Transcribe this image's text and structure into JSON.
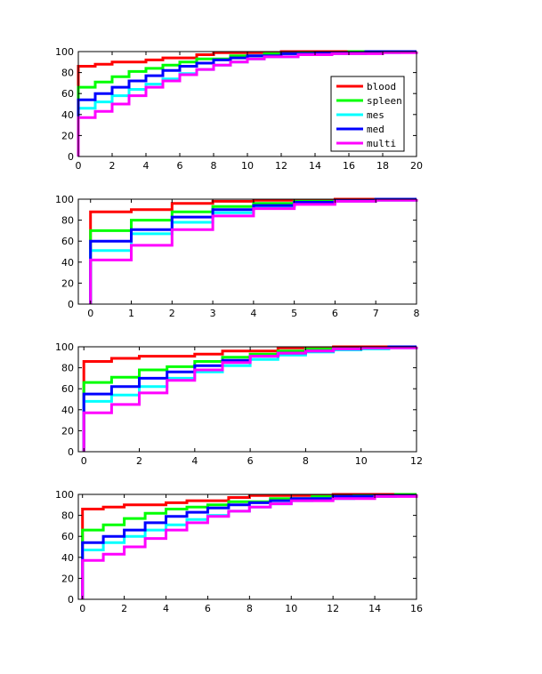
{
  "chart_data": [
    {
      "type": "line",
      "step": true,
      "xlim": [
        0,
        20
      ],
      "ylim": [
        0,
        100
      ],
      "xticks": [
        0,
        2,
        4,
        6,
        8,
        10,
        12,
        14,
        16,
        18,
        20
      ],
      "yticks": [
        0,
        20,
        40,
        60,
        80,
        100
      ],
      "legend": {
        "position": "right",
        "show": true
      },
      "series": [
        {
          "name": "blood",
          "color": "#ff0000",
          "start": 86,
          "points": [
            [
              1,
              88
            ],
            [
              2,
              90
            ],
            [
              4,
              92
            ],
            [
              5,
              94
            ],
            [
              7,
              97
            ],
            [
              8,
              99
            ],
            [
              12,
              100
            ]
          ]
        },
        {
          "name": "spleen",
          "color": "#00ff00",
          "start": 66,
          "points": [
            [
              1,
              71
            ],
            [
              2,
              76
            ],
            [
              3,
              81
            ],
            [
              4,
              84
            ],
            [
              5,
              87
            ],
            [
              6,
              90
            ],
            [
              7,
              93
            ],
            [
              9,
              96
            ],
            [
              11,
              98
            ],
            [
              13,
              99
            ],
            [
              16,
              100
            ]
          ]
        },
        {
          "name": "mes",
          "color": "#00ffff",
          "start": 46,
          "points": [
            [
              1,
              52
            ],
            [
              2,
              58
            ],
            [
              3,
              64
            ],
            [
              4,
              69
            ],
            [
              5,
              74
            ],
            [
              6,
              79
            ],
            [
              7,
              83
            ],
            [
              8,
              87
            ],
            [
              9,
              90
            ],
            [
              10,
              93
            ],
            [
              11,
              95
            ],
            [
              13,
              97
            ],
            [
              15,
              98
            ],
            [
              17,
              99
            ],
            [
              19,
              100
            ]
          ]
        },
        {
          "name": "med",
          "color": "#0000ff",
          "start": 54,
          "points": [
            [
              1,
              60
            ],
            [
              2,
              66
            ],
            [
              3,
              72
            ],
            [
              4,
              77
            ],
            [
              5,
              82
            ],
            [
              6,
              86
            ],
            [
              7,
              89
            ],
            [
              8,
              92
            ],
            [
              9,
              94
            ],
            [
              10,
              96
            ],
            [
              12,
              98
            ],
            [
              14,
              99
            ],
            [
              17,
              100
            ]
          ]
        },
        {
          "name": "multi",
          "color": "#ff00ff",
          "start": 37,
          "points": [
            [
              1,
              43
            ],
            [
              2,
              50
            ],
            [
              3,
              58
            ],
            [
              4,
              66
            ],
            [
              5,
              72
            ],
            [
              6,
              78
            ],
            [
              7,
              83
            ],
            [
              8,
              87
            ],
            [
              9,
              90
            ],
            [
              10,
              93
            ],
            [
              11,
              95
            ],
            [
              13,
              97
            ],
            [
              15,
              98
            ],
            [
              18,
              99
            ],
            [
              20,
              100
            ]
          ]
        }
      ]
    },
    {
      "type": "line",
      "step": true,
      "xlim": [
        -0.3,
        8
      ],
      "ylim": [
        0,
        100
      ],
      "xticks": [
        0,
        1,
        2,
        3,
        4,
        5,
        6,
        7,
        8
      ],
      "yticks": [
        0,
        20,
        40,
        60,
        80,
        100
      ],
      "legend": {
        "show": false
      },
      "series": [
        {
          "name": "blood",
          "color": "#ff0000",
          "start": 88,
          "points": [
            [
              1,
              90
            ],
            [
              2,
              96
            ],
            [
              3,
              98
            ],
            [
              4,
              99
            ],
            [
              6,
              100
            ]
          ]
        },
        {
          "name": "spleen",
          "color": "#00ff00",
          "start": 70,
          "points": [
            [
              1,
              80
            ],
            [
              2,
              88
            ],
            [
              3,
              93
            ],
            [
              4,
              96
            ],
            [
              5,
              98
            ],
            [
              6,
              99
            ],
            [
              7,
              100
            ]
          ]
        },
        {
          "name": "mes",
          "color": "#00ffff",
          "start": 51,
          "points": [
            [
              1,
              67
            ],
            [
              2,
              78
            ],
            [
              3,
              87
            ],
            [
              4,
              93
            ],
            [
              5,
              96
            ],
            [
              6,
              98
            ],
            [
              7,
              99
            ],
            [
              8,
              100
            ]
          ]
        },
        {
          "name": "med",
          "color": "#0000ff",
          "start": 60,
          "points": [
            [
              1,
              71
            ],
            [
              2,
              83
            ],
            [
              3,
              90
            ],
            [
              4,
              94
            ],
            [
              5,
              97
            ],
            [
              6,
              99
            ],
            [
              7,
              100
            ]
          ]
        },
        {
          "name": "multi",
          "color": "#ff00ff",
          "start": 42,
          "points": [
            [
              1,
              56
            ],
            [
              2,
              71
            ],
            [
              3,
              84
            ],
            [
              4,
              91
            ],
            [
              5,
              95
            ],
            [
              6,
              98
            ],
            [
              7,
              99
            ],
            [
              8,
              100
            ]
          ]
        }
      ]
    },
    {
      "type": "line",
      "step": true,
      "xlim": [
        -0.2,
        12
      ],
      "ylim": [
        0,
        100
      ],
      "xticks": [
        0,
        2,
        4,
        6,
        8,
        10,
        12
      ],
      "yticks": [
        0,
        20,
        40,
        60,
        80,
        100
      ],
      "legend": {
        "show": false
      },
      "series": [
        {
          "name": "blood",
          "color": "#ff0000",
          "start": 86,
          "points": [
            [
              1,
              89
            ],
            [
              2,
              91
            ],
            [
              4,
              93
            ],
            [
              5,
              96
            ],
            [
              7,
              99
            ],
            [
              9,
              100
            ]
          ]
        },
        {
          "name": "spleen",
          "color": "#00ff00",
          "start": 66,
          "points": [
            [
              1,
              71
            ],
            [
              2,
              78
            ],
            [
              3,
              81
            ],
            [
              4,
              86
            ],
            [
              5,
              90
            ],
            [
              6,
              93
            ],
            [
              7,
              96
            ],
            [
              8,
              98
            ],
            [
              10,
              99
            ],
            [
              11,
              100
            ]
          ]
        },
        {
          "name": "mes",
          "color": "#00ffff",
          "start": 48,
          "points": [
            [
              1,
              54
            ],
            [
              2,
              62
            ],
            [
              3,
              70
            ],
            [
              4,
              76
            ],
            [
              5,
              82
            ],
            [
              6,
              88
            ],
            [
              7,
              92
            ],
            [
              8,
              95
            ],
            [
              9,
              97
            ],
            [
              10,
              98
            ],
            [
              11,
              99
            ],
            [
              12,
              100
            ]
          ]
        },
        {
          "name": "med",
          "color": "#0000ff",
          "start": 55,
          "points": [
            [
              1,
              62
            ],
            [
              2,
              70
            ],
            [
              3,
              76
            ],
            [
              4,
              82
            ],
            [
              5,
              87
            ],
            [
              6,
              91
            ],
            [
              7,
              94
            ],
            [
              8,
              96
            ],
            [
              9,
              98
            ],
            [
              10,
              99
            ],
            [
              11,
              100
            ]
          ]
        },
        {
          "name": "multi",
          "color": "#ff00ff",
          "start": 37,
          "points": [
            [
              1,
              45
            ],
            [
              2,
              56
            ],
            [
              3,
              68
            ],
            [
              4,
              78
            ],
            [
              5,
              85
            ],
            [
              6,
              91
            ],
            [
              7,
              94
            ],
            [
              8,
              96
            ],
            [
              9,
              98
            ],
            [
              10,
              99
            ],
            [
              12,
              100
            ]
          ]
        }
      ]
    },
    {
      "type": "line",
      "step": true,
      "xlim": [
        -0.2,
        16
      ],
      "ylim": [
        0,
        100
      ],
      "xticks": [
        0,
        2,
        4,
        6,
        8,
        10,
        12,
        14,
        16
      ],
      "yticks": [
        0,
        20,
        40,
        60,
        80,
        100
      ],
      "legend": {
        "show": false
      },
      "series": [
        {
          "name": "blood",
          "color": "#ff0000",
          "start": 86,
          "points": [
            [
              1,
              88
            ],
            [
              2,
              90
            ],
            [
              4,
              92
            ],
            [
              5,
              94
            ],
            [
              7,
              97
            ],
            [
              8,
              99
            ],
            [
              12,
              100
            ]
          ]
        },
        {
          "name": "spleen",
          "color": "#00ff00",
          "start": 66,
          "points": [
            [
              1,
              71
            ],
            [
              2,
              77
            ],
            [
              3,
              82
            ],
            [
              4,
              86
            ],
            [
              5,
              88
            ],
            [
              6,
              90
            ],
            [
              7,
              93
            ],
            [
              9,
              96
            ],
            [
              11,
              98
            ],
            [
              13,
              99
            ],
            [
              15,
              100
            ]
          ]
        },
        {
          "name": "mes",
          "color": "#00ffff",
          "start": 47,
          "points": [
            [
              1,
              54
            ],
            [
              2,
              60
            ],
            [
              3,
              66
            ],
            [
              4,
              71
            ],
            [
              5,
              76
            ],
            [
              6,
              80
            ],
            [
              7,
              84
            ],
            [
              8,
              88
            ],
            [
              9,
              91
            ],
            [
              10,
              94
            ],
            [
              11,
              96
            ],
            [
              13,
              98
            ],
            [
              15,
              99
            ],
            [
              16,
              100
            ]
          ]
        },
        {
          "name": "med",
          "color": "#0000ff",
          "start": 54,
          "points": [
            [
              1,
              60
            ],
            [
              2,
              66
            ],
            [
              3,
              73
            ],
            [
              4,
              79
            ],
            [
              5,
              83
            ],
            [
              6,
              87
            ],
            [
              7,
              90
            ],
            [
              8,
              92
            ],
            [
              9,
              94
            ],
            [
              10,
              96
            ],
            [
              12,
              98
            ],
            [
              14,
              99
            ],
            [
              16,
              100
            ]
          ]
        },
        {
          "name": "multi",
          "color": "#ff00ff",
          "start": 37,
          "points": [
            [
              1,
              43
            ],
            [
              2,
              50
            ],
            [
              3,
              58
            ],
            [
              4,
              66
            ],
            [
              5,
              73
            ],
            [
              6,
              79
            ],
            [
              7,
              84
            ],
            [
              8,
              88
            ],
            [
              9,
              91
            ],
            [
              10,
              94
            ],
            [
              12,
              96
            ],
            [
              14,
              98
            ],
            [
              16,
              100
            ]
          ]
        }
      ]
    }
  ]
}
